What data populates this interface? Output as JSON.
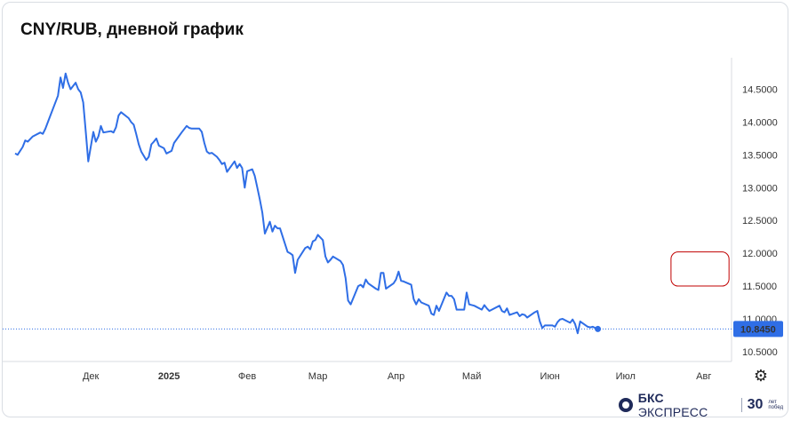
{
  "title": "CNY/RUB, дневной график",
  "gear_icon": "gear-icon",
  "brand": {
    "icon": "bks-logo-icon",
    "name_strong": "БКС",
    "name_rest": "ЭКСПРЕСС",
    "anniversary_number": "30",
    "anniversary_text": "лет побед"
  },
  "colors": {
    "line": "#2f6ee6",
    "last_price_badge": "#2f6ee6",
    "highlight_box": "#c00000"
  },
  "chart_data": {
    "type": "line",
    "title": "CNY/RUB, дневной график",
    "xlabel": "",
    "ylabel": "",
    "ylim": [
      10.35,
      14.98
    ],
    "y_ticks": [
      "14.5000",
      "14.0000",
      "13.5000",
      "13.0000",
      "12.5000",
      "12.0000",
      "11.5000",
      "11.0000",
      "10.5000"
    ],
    "y_tick_values": [
      14.5,
      14.0,
      13.5,
      13.0,
      12.5,
      12.0,
      11.5,
      11.0,
      10.5
    ],
    "x_ticks": [
      "Дек",
      "2025",
      "Фев",
      "Мар",
      "Апр",
      "Май",
      "Июн",
      "Июл",
      "Авг"
    ],
    "x_tick_dates": [
      "2024-12-01",
      "2025-01-01",
      "2025-02-01",
      "2025-03-01",
      "2025-04-01",
      "2025-05-01",
      "2025-06-01",
      "2025-07-01",
      "2025-08-01"
    ],
    "x_range": [
      "2024-11-01",
      "2025-08-12"
    ],
    "last_value": 10.845,
    "last_value_label": "10.8450",
    "grid": false,
    "series": [
      {
        "values": [
          [
            "2024-11-01",
            13.52
          ],
          [
            "2024-11-02",
            13.5
          ],
          [
            "2024-11-04",
            13.62
          ],
          [
            "2024-11-05",
            13.72
          ],
          [
            "2024-11-06",
            13.7
          ],
          [
            "2024-11-07",
            13.74
          ],
          [
            "2024-11-08",
            13.78
          ],
          [
            "2024-11-11",
            13.84
          ],
          [
            "2024-11-12",
            13.82
          ],
          [
            "2024-11-13",
            13.9
          ],
          [
            "2024-11-14",
            14.0
          ],
          [
            "2024-11-15",
            14.1
          ],
          [
            "2024-11-18",
            14.4
          ],
          [
            "2024-11-19",
            14.68
          ],
          [
            "2024-11-20",
            14.52
          ],
          [
            "2024-11-21",
            14.74
          ],
          [
            "2024-11-22",
            14.6
          ],
          [
            "2024-11-23",
            14.5
          ],
          [
            "2024-11-25",
            14.6
          ],
          [
            "2024-11-26",
            14.5
          ],
          [
            "2024-11-27",
            14.45
          ],
          [
            "2024-11-28",
            14.3
          ],
          [
            "2024-11-29",
            13.85
          ],
          [
            "2024-11-30",
            13.4
          ],
          [
            "2024-12-02",
            13.85
          ],
          [
            "2024-12-03",
            13.7
          ],
          [
            "2024-12-04",
            13.78
          ],
          [
            "2024-12-05",
            13.94
          ],
          [
            "2024-12-06",
            13.84
          ],
          [
            "2024-12-09",
            13.86
          ],
          [
            "2024-12-10",
            13.84
          ],
          [
            "2024-12-11",
            13.92
          ],
          [
            "2024-12-12",
            14.1
          ],
          [
            "2024-12-13",
            14.15
          ],
          [
            "2024-12-16",
            14.06
          ],
          [
            "2024-12-17",
            14.0
          ],
          [
            "2024-12-18",
            13.96
          ],
          [
            "2024-12-19",
            13.82
          ],
          [
            "2024-12-20",
            13.66
          ],
          [
            "2024-12-21",
            13.55
          ],
          [
            "2024-12-23",
            13.42
          ],
          [
            "2024-12-24",
            13.47
          ],
          [
            "2024-12-25",
            13.66
          ],
          [
            "2024-12-26",
            13.7
          ],
          [
            "2024-12-27",
            13.75
          ],
          [
            "2024-12-28",
            13.64
          ],
          [
            "2024-12-30",
            13.6
          ],
          [
            "2024-12-31",
            13.52
          ],
          [
            "2025-01-02",
            13.56
          ],
          [
            "2025-01-03",
            13.68
          ],
          [
            "2025-01-06",
            13.84
          ],
          [
            "2025-01-08",
            13.94
          ],
          [
            "2025-01-09",
            13.91
          ],
          [
            "2025-01-10",
            13.9
          ],
          [
            "2025-01-13",
            13.9
          ],
          [
            "2025-01-14",
            13.85
          ],
          [
            "2025-01-15",
            13.68
          ],
          [
            "2025-01-16",
            13.55
          ],
          [
            "2025-01-17",
            13.52
          ],
          [
            "2025-01-18",
            13.53
          ],
          [
            "2025-01-20",
            13.47
          ],
          [
            "2025-01-21",
            13.42
          ],
          [
            "2025-01-22",
            13.36
          ],
          [
            "2025-01-23",
            13.38
          ],
          [
            "2025-01-24",
            13.24
          ],
          [
            "2025-01-27",
            13.4
          ],
          [
            "2025-01-28",
            13.3
          ],
          [
            "2025-01-29",
            13.36
          ],
          [
            "2025-01-30",
            13.3
          ],
          [
            "2025-01-31",
            13.0
          ],
          [
            "2025-02-01",
            13.25
          ],
          [
            "2025-02-03",
            13.28
          ],
          [
            "2025-02-04",
            13.18
          ],
          [
            "2025-02-05",
            13.0
          ],
          [
            "2025-02-06",
            12.82
          ],
          [
            "2025-02-07",
            12.62
          ],
          [
            "2025-02-08",
            12.3
          ],
          [
            "2025-02-10",
            12.48
          ],
          [
            "2025-02-11",
            12.33
          ],
          [
            "2025-02-12",
            12.42
          ],
          [
            "2025-02-13",
            12.38
          ],
          [
            "2025-02-14",
            12.38
          ],
          [
            "2025-02-17",
            12.02
          ],
          [
            "2025-02-18",
            12.0
          ],
          [
            "2025-02-19",
            11.97
          ],
          [
            "2025-02-20",
            11.7
          ],
          [
            "2025-02-21",
            11.9
          ],
          [
            "2025-02-24",
            12.08
          ],
          [
            "2025-02-25",
            12.1
          ],
          [
            "2025-02-26",
            12.06
          ],
          [
            "2025-02-27",
            12.18
          ],
          [
            "2025-02-28",
            12.2
          ],
          [
            "2025-03-01",
            12.28
          ],
          [
            "2025-03-03",
            12.2
          ],
          [
            "2025-03-04",
            11.95
          ],
          [
            "2025-03-05",
            11.86
          ],
          [
            "2025-03-06",
            11.9
          ],
          [
            "2025-03-07",
            11.95
          ],
          [
            "2025-03-10",
            11.88
          ],
          [
            "2025-03-11",
            11.82
          ],
          [
            "2025-03-12",
            11.62
          ],
          [
            "2025-03-13",
            11.28
          ],
          [
            "2025-03-14",
            11.22
          ],
          [
            "2025-03-17",
            11.5
          ],
          [
            "2025-03-18",
            11.52
          ],
          [
            "2025-03-19",
            11.48
          ],
          [
            "2025-03-20",
            11.6
          ],
          [
            "2025-03-21",
            11.54
          ],
          [
            "2025-03-24",
            11.46
          ],
          [
            "2025-03-25",
            11.44
          ],
          [
            "2025-03-26",
            11.7
          ],
          [
            "2025-03-27",
            11.7
          ],
          [
            "2025-03-28",
            11.46
          ],
          [
            "2025-03-31",
            11.54
          ],
          [
            "2025-04-01",
            11.6
          ],
          [
            "2025-04-02",
            11.72
          ],
          [
            "2025-04-03",
            11.58
          ],
          [
            "2025-04-04",
            11.57
          ],
          [
            "2025-04-07",
            11.52
          ],
          [
            "2025-04-08",
            11.3
          ],
          [
            "2025-04-09",
            11.22
          ],
          [
            "2025-04-10",
            11.3
          ],
          [
            "2025-04-11",
            11.25
          ],
          [
            "2025-04-14",
            11.2
          ],
          [
            "2025-04-15",
            11.08
          ],
          [
            "2025-04-16",
            11.06
          ],
          [
            "2025-04-17",
            11.2
          ],
          [
            "2025-04-18",
            11.12
          ],
          [
            "2025-04-21",
            11.4
          ],
          [
            "2025-04-22",
            11.35
          ],
          [
            "2025-04-23",
            11.35
          ],
          [
            "2025-04-24",
            11.3
          ],
          [
            "2025-04-25",
            11.14
          ],
          [
            "2025-04-28",
            11.14
          ],
          [
            "2025-04-29",
            11.4
          ],
          [
            "2025-04-30",
            11.22
          ],
          [
            "2025-05-02",
            11.2
          ],
          [
            "2025-05-05",
            11.14
          ],
          [
            "2025-05-06",
            11.21
          ],
          [
            "2025-05-07",
            11.16
          ],
          [
            "2025-05-08",
            11.12
          ],
          [
            "2025-05-12",
            11.2
          ],
          [
            "2025-05-13",
            11.12
          ],
          [
            "2025-05-14",
            11.1
          ],
          [
            "2025-05-15",
            11.16
          ],
          [
            "2025-05-16",
            11.06
          ],
          [
            "2025-05-19",
            11.1
          ],
          [
            "2025-05-20",
            11.04
          ],
          [
            "2025-05-21",
            11.07
          ],
          [
            "2025-05-22",
            11.06
          ],
          [
            "2025-05-23",
            11.02
          ],
          [
            "2025-05-26",
            11.1
          ],
          [
            "2025-05-27",
            11.12
          ],
          [
            "2025-05-28",
            10.96
          ],
          [
            "2025-05-29",
            10.86
          ],
          [
            "2025-05-30",
            10.9
          ],
          [
            "2025-06-02",
            10.9
          ],
          [
            "2025-06-03",
            10.88
          ],
          [
            "2025-06-04",
            10.95
          ],
          [
            "2025-06-05",
            10.99
          ],
          [
            "2025-06-06",
            11.0
          ],
          [
            "2025-06-09",
            10.94
          ],
          [
            "2025-06-10",
            10.99
          ],
          [
            "2025-06-11",
            10.92
          ],
          [
            "2025-06-12",
            10.78
          ],
          [
            "2025-06-13",
            10.96
          ],
          [
            "2025-06-16",
            10.88
          ],
          [
            "2025-06-17",
            10.87
          ],
          [
            "2025-06-18",
            10.88
          ],
          [
            "2025-06-19",
            10.86
          ],
          [
            "2025-06-20",
            10.845
          ]
        ]
      }
    ],
    "annotation_box": {
      "y_low": 11.5,
      "y_high": 12.02,
      "date_from": "2025-07-19",
      "date_to": "2025-08-11"
    }
  }
}
